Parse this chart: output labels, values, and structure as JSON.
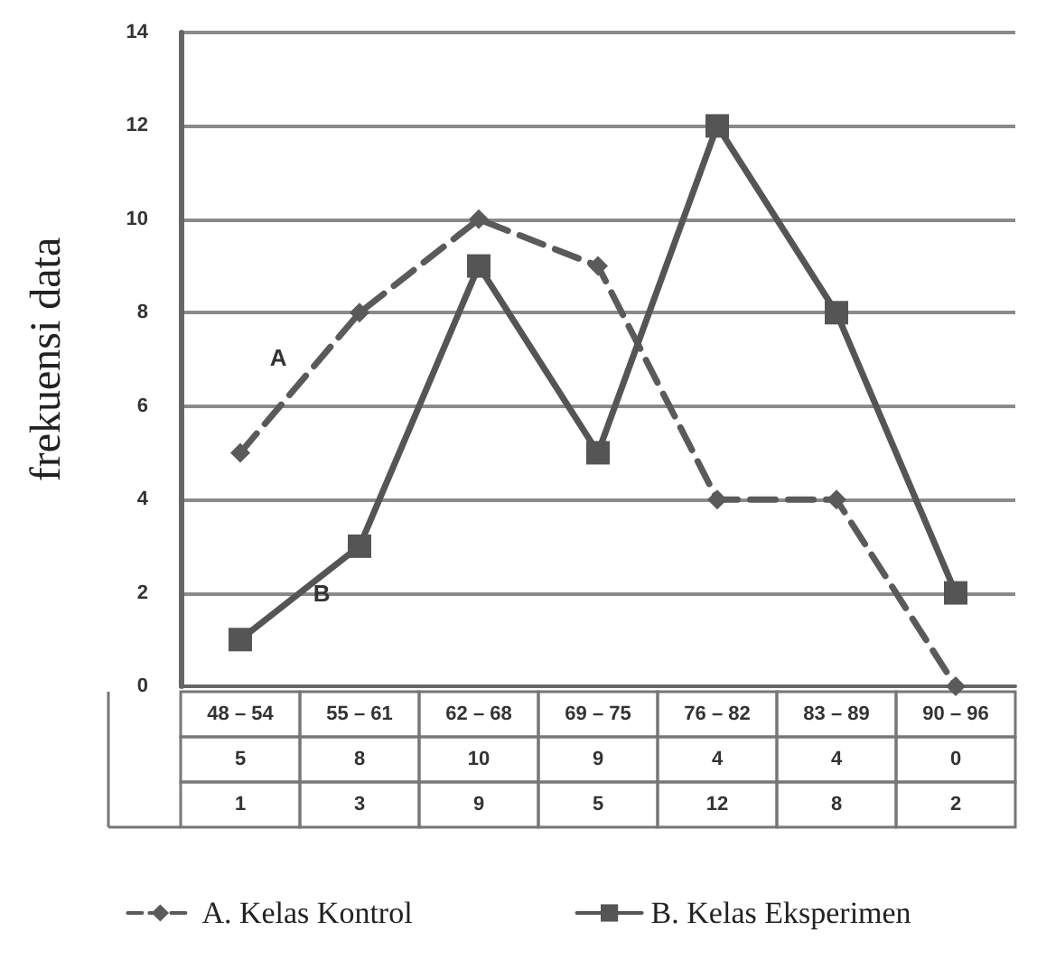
{
  "chart_data": {
    "type": "line",
    "ylabel": "frekuensi data",
    "categories": [
      "48 – 54",
      "55 – 61",
      "62 – 68",
      "69 – 75",
      "76 – 82",
      "83 – 89",
      "90 – 96"
    ],
    "series": [
      {
        "name": "A. Kelas Kontrol",
        "color": "#5a5a5a",
        "values": [
          5,
          8,
          10,
          9,
          4,
          4,
          0
        ],
        "line_style": "dashed",
        "marker": "diamond"
      },
      {
        "name": "B. Kelas Eksperimen",
        "color": "#555555",
        "values": [
          1,
          3,
          9,
          5,
          12,
          8,
          2
        ],
        "line_style": "solid",
        "marker": "square"
      }
    ],
    "annotations": [
      "A",
      "B"
    ],
    "ylim": [
      0,
      14
    ],
    "yticks": [
      0,
      2,
      4,
      6,
      8,
      10,
      12,
      14
    ],
    "grid": "y",
    "legend": "bottom",
    "data_labels": true
  }
}
